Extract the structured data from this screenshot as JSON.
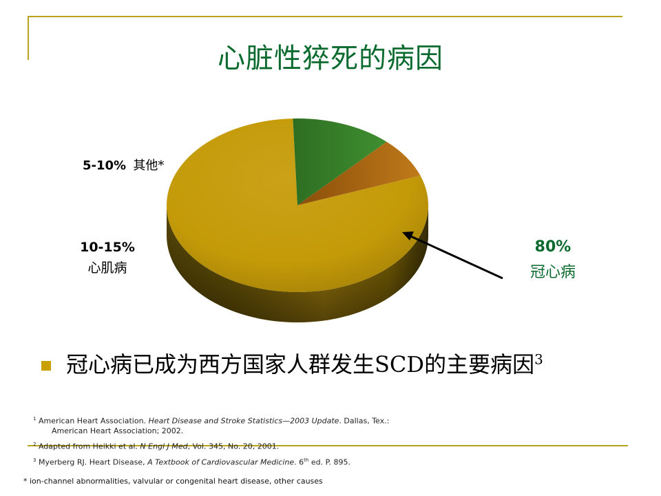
{
  "slide": {
    "title": "心脏性猝死的病因",
    "bullet": "冠心病已成为西方国家人群发生SCD的主要病因",
    "bullet_sup": "3"
  },
  "chart_data": {
    "type": "pie",
    "labels": [
      "冠心病",
      "心肌病",
      "其他*"
    ],
    "display_values": [
      "80%",
      "10-15%",
      "5-10%"
    ],
    "values": [
      80,
      12.5,
      7.5
    ],
    "colors": [
      "#c9a000",
      "#3a8a2a",
      "#b06a10"
    ],
    "style": "3d"
  },
  "labels": {
    "other_pct": "5-10%",
    "other_name": "其他*",
    "cm_pct": "10-15%",
    "cm_name": "心肌病",
    "chd_pct": "80%",
    "chd_name": "冠心病"
  },
  "references": {
    "ref1_num": "1",
    "ref1_a": "American Heart Association.  ",
    "ref1_b": "Heart Disease and Stroke Statistics—2003 Update",
    "ref1_c": ".  Dallas, Tex.:",
    "ref1_d": "American Heart Association; 2002.",
    "ref2_num": "2",
    "ref2_a": "Adapted from Heikki et al.  ",
    "ref2_b": "N Engl J Med",
    "ref2_c": ", Vol. 345, No. 20, 2001.",
    "ref3_num": "3",
    "ref3_a": "Myerberg RJ. Heart Disease, ",
    "ref3_b": "A Textbook of Cardiovascular Medicine",
    "ref3_c": ". 6",
    "ref3_sup": "th",
    "ref3_d": " ed.  P. 895."
  },
  "footnote": "* ion-channel abnormalities, valvular or congenital heart disease, other causes",
  "colors": {
    "title_green": "#0b6b2e",
    "frame_gold": "#b8a21a",
    "bullet_gold": "#c9a000"
  }
}
